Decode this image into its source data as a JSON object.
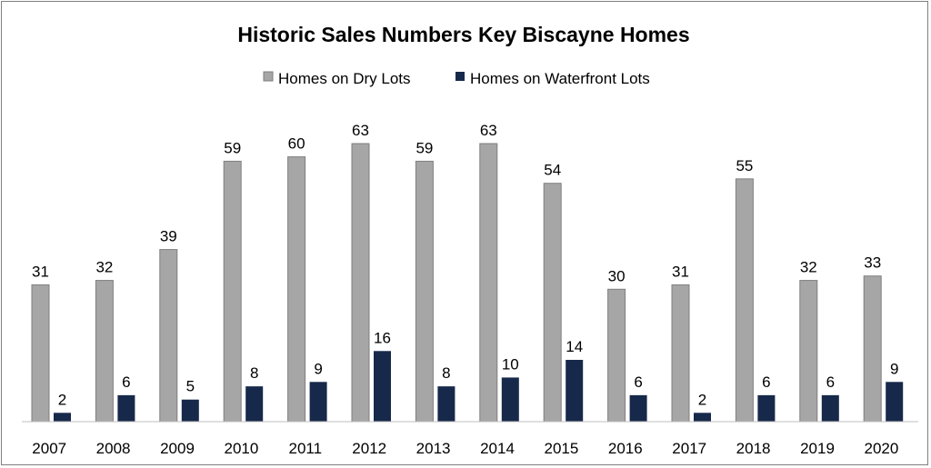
{
  "chart_data": {
    "type": "bar",
    "title": "Historic Sales Numbers Key Biscayne Homes",
    "xlabel": "",
    "ylabel": "",
    "categories": [
      "2007",
      "2008",
      "2009",
      "2010",
      "2011",
      "2012",
      "2013",
      "2014",
      "2015",
      "2016",
      "2017",
      "2018",
      "2019",
      "2020"
    ],
    "series": [
      {
        "name": "Homes on Dry Lots",
        "color": "#a6a6a6",
        "values": [
          31,
          32,
          39,
          59,
          60,
          63,
          59,
          63,
          54,
          30,
          31,
          55,
          32,
          33
        ]
      },
      {
        "name": "Homes on Waterfront Lots",
        "color": "#17294a",
        "values": [
          2,
          6,
          5,
          8,
          9,
          16,
          8,
          10,
          14,
          6,
          2,
          6,
          6,
          9
        ]
      }
    ],
    "ylim": [
      0,
      63
    ],
    "grid": false,
    "legend_position": "top"
  }
}
